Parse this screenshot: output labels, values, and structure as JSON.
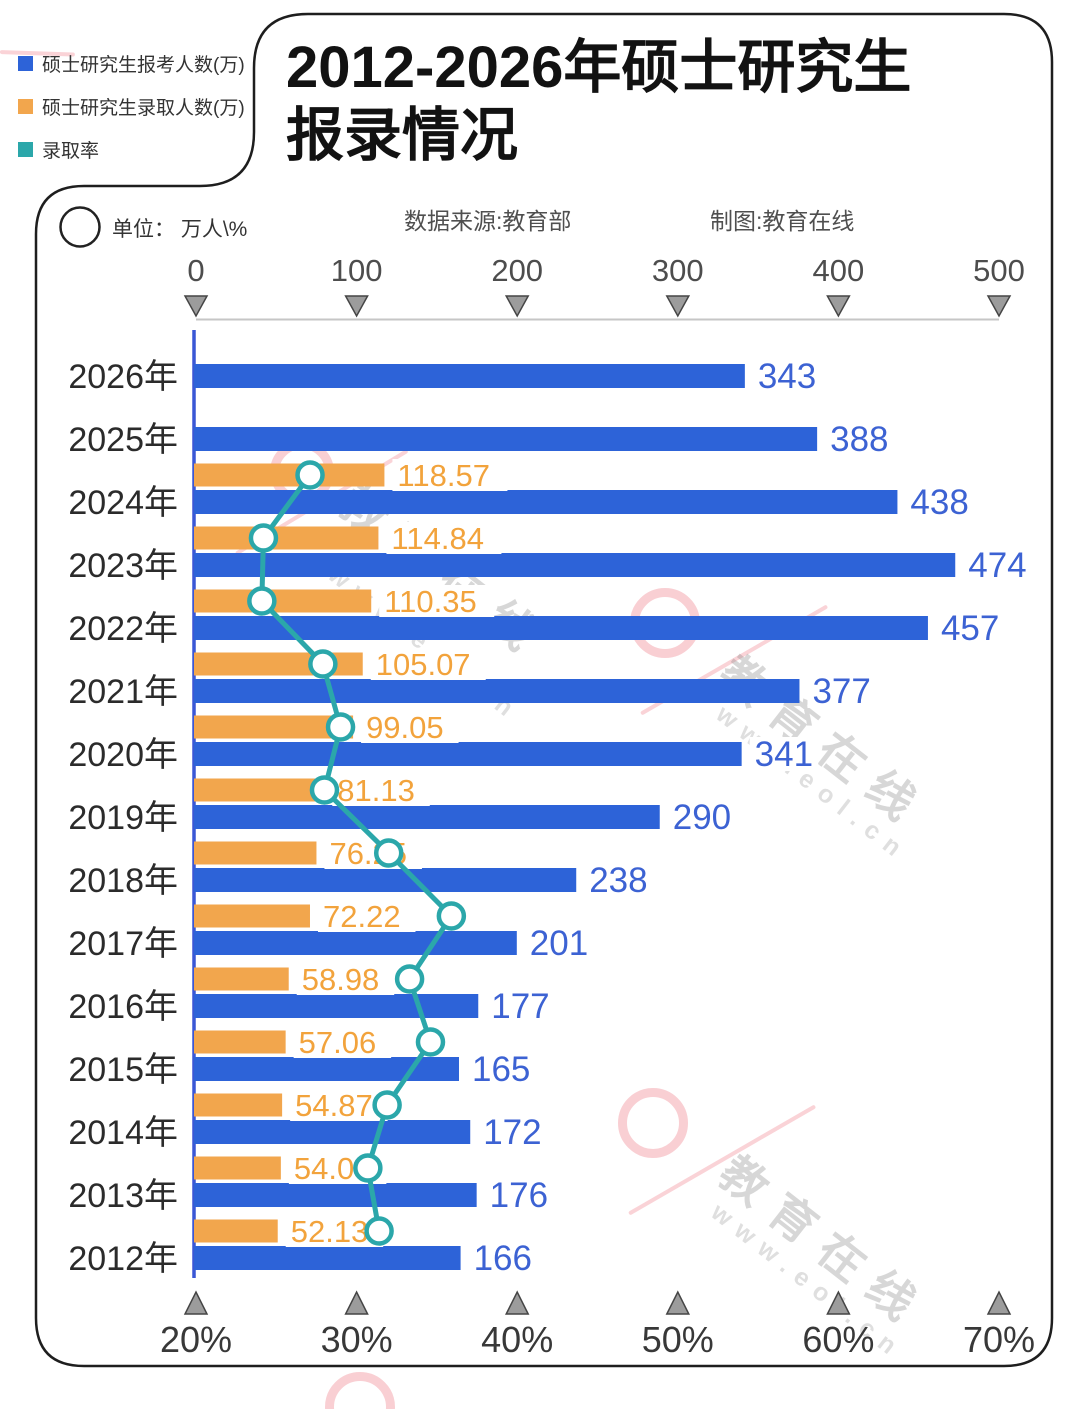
{
  "header": {
    "title_line1": "2012-2026年硕士研究生",
    "title_line2": "报录情况",
    "source": "数据来源:教育部",
    "credit": "制图:教育在线",
    "unit_label": "单位： 万人\\%"
  },
  "legend": {
    "items": [
      {
        "label": "硕士研究生报考人数(万)",
        "color": "#2d63d8"
      },
      {
        "label": "硕士研究生录取人数(万)",
        "color": "#f2a64d"
      },
      {
        "label": "录取率",
        "color": "#2ba7aa"
      }
    ]
  },
  "watermark": {
    "brand": "教育在线",
    "url": "www.eol.cn"
  },
  "chart_data": {
    "type": "bar",
    "orientation": "horizontal bars with percent line",
    "title": "2012-2026年硕士研究生报录情况",
    "categories": [
      "2026年",
      "2025年",
      "2024年",
      "2023年",
      "2022年",
      "2021年",
      "2020年",
      "2019年",
      "2018年",
      "2017年",
      "2016年",
      "2015年",
      "2014年",
      "2013年",
      "2012年"
    ],
    "series": [
      {
        "name": "硕士研究生报考人数(万)",
        "type": "bar",
        "color": "#2d63d8",
        "label_color": "#3c62d3",
        "values": [
          343,
          388,
          438,
          474,
          457,
          377,
          341,
          290,
          238,
          201,
          177,
          165,
          172,
          176,
          166
        ]
      },
      {
        "name": "硕士研究生录取人数(万)",
        "type": "bar",
        "color": "#f2a64d",
        "label_color": "#f2a33c",
        "values": [
          null,
          null,
          118.57,
          114.84,
          110.35,
          105.07,
          99.05,
          81.13,
          76.25,
          72.22,
          58.98,
          57.06,
          54.87,
          54.09,
          52.13
        ]
      },
      {
        "name": "录取率",
        "type": "line",
        "color": "#2ba7aa",
        "axis": "bottom_percent",
        "values_estimated_pct": [
          null,
          null,
          27.1,
          24.2,
          24.1,
          27.9,
          29.0,
          28.0,
          32.0,
          35.9,
          33.3,
          34.6,
          31.9,
          30.7,
          31.4
        ]
      }
    ],
    "top_axis": {
      "ticks": [
        0,
        100,
        200,
        300,
        400,
        500
      ],
      "range": [
        0,
        500
      ]
    },
    "bottom_axis": {
      "ticks": [
        "20%",
        "30%",
        "40%",
        "50%",
        "60%",
        "70%"
      ],
      "range_pct": [
        20,
        70
      ]
    },
    "grid": false,
    "legend_position": "top-left"
  }
}
